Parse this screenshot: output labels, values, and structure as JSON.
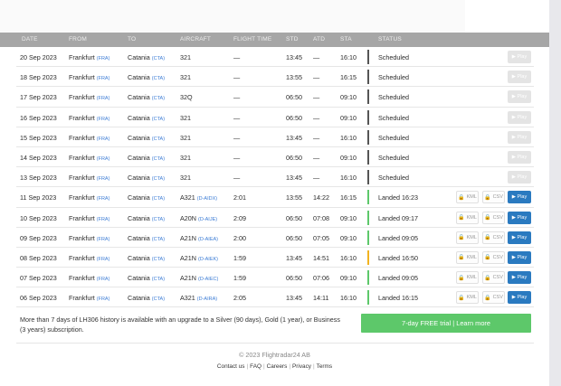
{
  "columns": [
    "DATE",
    "FROM",
    "TO",
    "AIRCRAFT",
    "FLIGHT TIME",
    "STD",
    "ATD",
    "STA",
    "",
    "STATUS"
  ],
  "colors": {
    "scheduled_bar": "#555555",
    "landed_bar": "#5dc86a",
    "late_bar": "#f2b320",
    "play": "#2a7ac0",
    "trial": "#5dc86a"
  },
  "rows": [
    {
      "date": "20 Sep 2023",
      "from": "Frankfurt",
      "from_code": "(FRA)",
      "to": "Catania",
      "to_code": "(CTA)",
      "aircraft": "321",
      "reg": "",
      "flight_time": "—",
      "std": "13:45",
      "atd": "—",
      "sta": "16:10",
      "status": "Scheduled",
      "bar": "scheduled",
      "kml": "",
      "csv": "",
      "play": "▶ Play",
      "play_enabled": false
    },
    {
      "date": "18 Sep 2023",
      "from": "Frankfurt",
      "from_code": "(FRA)",
      "to": "Catania",
      "to_code": "(CTA)",
      "aircraft": "321",
      "reg": "",
      "flight_time": "—",
      "std": "13:55",
      "atd": "—",
      "sta": "16:15",
      "status": "Scheduled",
      "bar": "scheduled",
      "kml": "",
      "csv": "",
      "play": "▶ Play",
      "play_enabled": false
    },
    {
      "date": "17 Sep 2023",
      "from": "Frankfurt",
      "from_code": "(FRA)",
      "to": "Catania",
      "to_code": "(CTA)",
      "aircraft": "32Q",
      "reg": "",
      "flight_time": "—",
      "std": "06:50",
      "atd": "—",
      "sta": "09:10",
      "status": "Scheduled",
      "bar": "scheduled",
      "kml": "",
      "csv": "",
      "play": "▶ Play",
      "play_enabled": false
    },
    {
      "date": "16 Sep 2023",
      "from": "Frankfurt",
      "from_code": "(FRA)",
      "to": "Catania",
      "to_code": "(CTA)",
      "aircraft": "321",
      "reg": "",
      "flight_time": "—",
      "std": "06:50",
      "atd": "—",
      "sta": "09:10",
      "status": "Scheduled",
      "bar": "scheduled",
      "kml": "",
      "csv": "",
      "play": "▶ Play",
      "play_enabled": false
    },
    {
      "date": "15 Sep 2023",
      "from": "Frankfurt",
      "from_code": "(FRA)",
      "to": "Catania",
      "to_code": "(CTA)",
      "aircraft": "321",
      "reg": "",
      "flight_time": "—",
      "std": "13:45",
      "atd": "—",
      "sta": "16:10",
      "status": "Scheduled",
      "bar": "scheduled",
      "kml": "",
      "csv": "",
      "play": "▶ Play",
      "play_enabled": false
    },
    {
      "date": "14 Sep 2023",
      "from": "Frankfurt",
      "from_code": "(FRA)",
      "to": "Catania",
      "to_code": "(CTA)",
      "aircraft": "321",
      "reg": "",
      "flight_time": "—",
      "std": "06:50",
      "atd": "—",
      "sta": "09:10",
      "status": "Scheduled",
      "bar": "scheduled",
      "kml": "",
      "csv": "",
      "play": "▶ Play",
      "play_enabled": false
    },
    {
      "date": "13 Sep 2023",
      "from": "Frankfurt",
      "from_code": "(FRA)",
      "to": "Catania",
      "to_code": "(CTA)",
      "aircraft": "321",
      "reg": "",
      "flight_time": "—",
      "std": "13:45",
      "atd": "—",
      "sta": "16:10",
      "status": "Scheduled",
      "bar": "scheduled",
      "kml": "",
      "csv": "",
      "play": "▶ Play",
      "play_enabled": false
    },
    {
      "date": "11 Sep 2023",
      "from": "Frankfurt",
      "from_code": "(FRA)",
      "to": "Catania",
      "to_code": "(CTA)",
      "aircraft": "A321",
      "reg": "(D-AIDX)",
      "flight_time": "2:01",
      "std": "13:55",
      "atd": "14:22",
      "sta": "16:15",
      "status": "Landed 16:23",
      "bar": "landed",
      "kml": "KML",
      "csv": "CSV",
      "play": "▶ Play",
      "play_enabled": true
    },
    {
      "date": "10 Sep 2023",
      "from": "Frankfurt",
      "from_code": "(FRA)",
      "to": "Catania",
      "to_code": "(CTA)",
      "aircraft": "A20N",
      "reg": "(D-AIJE)",
      "flight_time": "2:09",
      "std": "06:50",
      "atd": "07:08",
      "sta": "09:10",
      "status": "Landed 09:17",
      "bar": "landed",
      "kml": "KML",
      "csv": "CSV",
      "play": "▶ Play",
      "play_enabled": true
    },
    {
      "date": "09 Sep 2023",
      "from": "Frankfurt",
      "from_code": "(FRA)",
      "to": "Catania",
      "to_code": "(CTA)",
      "aircraft": "A21N",
      "reg": "(D-AIEA)",
      "flight_time": "2:00",
      "std": "06:50",
      "atd": "07:05",
      "sta": "09:10",
      "status": "Landed 09:05",
      "bar": "landed",
      "kml": "KML",
      "csv": "CSV",
      "play": "▶ Play",
      "play_enabled": true
    },
    {
      "date": "08 Sep 2023",
      "from": "Frankfurt",
      "from_code": "(FRA)",
      "to": "Catania",
      "to_code": "(CTA)",
      "aircraft": "A21N",
      "reg": "(D-AIEK)",
      "flight_time": "1:59",
      "std": "13:45",
      "atd": "14:51",
      "sta": "16:10",
      "status": "Landed 16:50",
      "bar": "late",
      "kml": "KML",
      "csv": "CSV",
      "play": "▶ Play",
      "play_enabled": true
    },
    {
      "date": "07 Sep 2023",
      "from": "Frankfurt",
      "from_code": "(FRA)",
      "to": "Catania",
      "to_code": "(CTA)",
      "aircraft": "A21N",
      "reg": "(D-AIEC)",
      "flight_time": "1:59",
      "std": "06:50",
      "atd": "07:06",
      "sta": "09:10",
      "status": "Landed 09:05",
      "bar": "landed",
      "kml": "KML",
      "csv": "CSV",
      "play": "▶ Play",
      "play_enabled": true
    },
    {
      "date": "06 Sep 2023",
      "from": "Frankfurt",
      "from_code": "(FRA)",
      "to": "Catania",
      "to_code": "(CTA)",
      "aircraft": "A321",
      "reg": "(D-AIRA)",
      "flight_time": "2:05",
      "std": "13:45",
      "atd": "14:11",
      "sta": "16:10",
      "status": "Landed 16:15",
      "bar": "landed",
      "kml": "KML",
      "csv": "CSV",
      "play": "▶ Play",
      "play_enabled": true
    }
  ],
  "upgrade_note": "More than 7 days of LH306 history is available with an upgrade to a Silver (90 days), Gold (1 year), or Business (3 years) subscription.",
  "trial_button": "7-day FREE trial | Learn more",
  "copyright": "© 2023 Flightradar24 AB",
  "footer_links": [
    "Contact us",
    "FAQ",
    "Careers",
    "Privacy",
    "Terms"
  ]
}
